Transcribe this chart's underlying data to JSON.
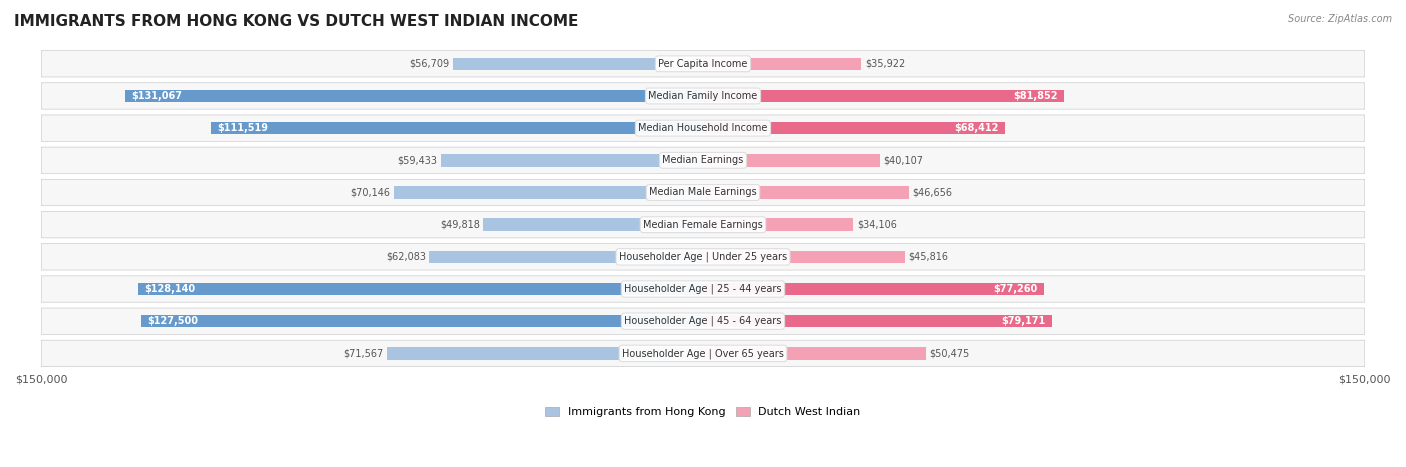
{
  "title": "IMMIGRANTS FROM HONG KONG VS DUTCH WEST INDIAN INCOME",
  "source": "Source: ZipAtlas.com",
  "categories": [
    "Per Capita Income",
    "Median Family Income",
    "Median Household Income",
    "Median Earnings",
    "Median Male Earnings",
    "Median Female Earnings",
    "Householder Age | Under 25 years",
    "Householder Age | 25 - 44 years",
    "Householder Age | 45 - 64 years",
    "Householder Age | Over 65 years"
  ],
  "hk_values": [
    56709,
    131067,
    111519,
    59433,
    70146,
    49818,
    62083,
    128140,
    127500,
    71567
  ],
  "dwi_values": [
    35922,
    81852,
    68412,
    40107,
    46656,
    34106,
    45816,
    77260,
    79171,
    50475
  ],
  "hk_labels": [
    "$56,709",
    "$131,067",
    "$111,519",
    "$59,433",
    "$70,146",
    "$49,818",
    "$62,083",
    "$128,140",
    "$127,500",
    "$71,567"
  ],
  "dwi_labels": [
    "$35,922",
    "$81,852",
    "$68,412",
    "$40,107",
    "$46,656",
    "$34,106",
    "$45,816",
    "$77,260",
    "$79,171",
    "$50,475"
  ],
  "hk_color_light": "#a8c4e0",
  "hk_color_dark": "#6699cc",
  "dwi_color_light": "#f4a0b5",
  "dwi_color_dark": "#e8698a",
  "max_value": 150000,
  "bg_color": "#ffffff",
  "row_bg_color": "#f0f0f0",
  "label_box_color": "#ffffff",
  "legend_hk_color": "#a8c4e0",
  "legend_dwi_color": "#f4a0b5"
}
